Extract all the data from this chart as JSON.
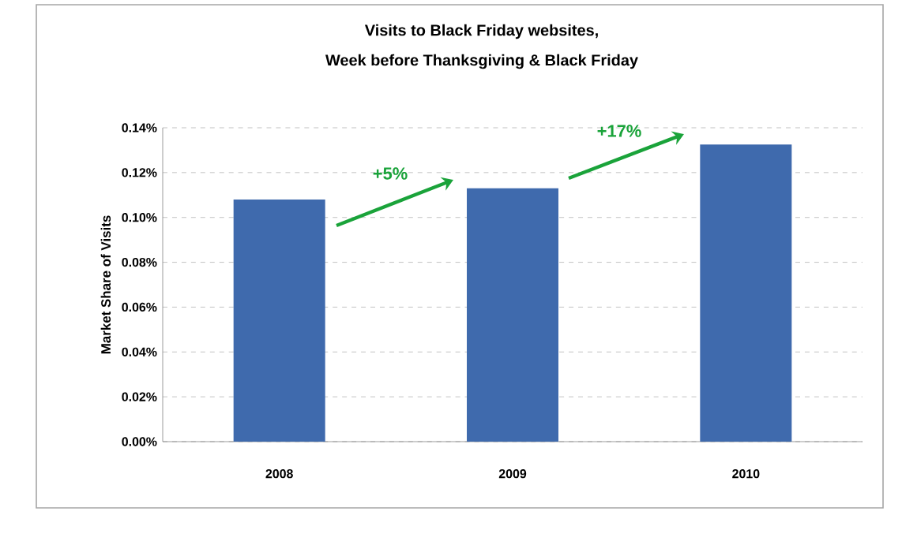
{
  "chart_data": {
    "type": "bar",
    "title": "Visits to Black Friday websites,",
    "subtitle": "Week before Thanksgiving & Black Friday",
    "ylabel": "Market Share of Visits",
    "categories": [
      "2008",
      "2009",
      "2010"
    ],
    "values": [
      0.108,
      0.113,
      0.1325
    ],
    "color": "#3f6aad",
    "ylim": [
      0,
      0.14
    ],
    "yticks": [
      {
        "value": 0,
        "label": "0.00%"
      },
      {
        "value": 0.02,
        "label": "0.02%"
      },
      {
        "value": 0.04,
        "label": "0.04%"
      },
      {
        "value": 0.06,
        "label": "0.06%"
      },
      {
        "value": 0.08,
        "label": "0.08%"
      },
      {
        "value": 0.1,
        "label": "0.10%"
      },
      {
        "value": 0.12,
        "label": "0.12%"
      },
      {
        "value": 0.14,
        "label": "0.14%"
      }
    ],
    "grid": "y",
    "legend": false,
    "annotations": [
      "+5%",
      "+17%"
    ]
  }
}
